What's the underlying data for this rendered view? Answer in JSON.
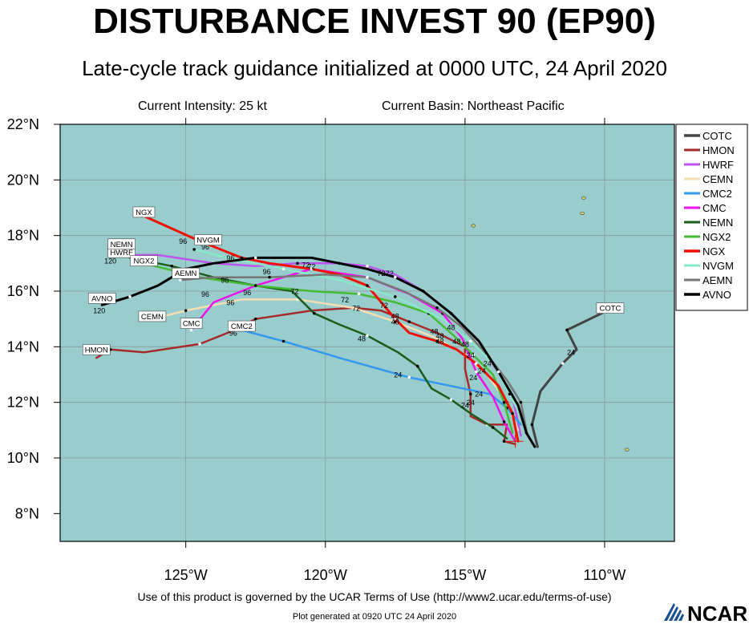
{
  "header": {
    "title": "DISTURBANCE INVEST 90 (EP90)",
    "subtitle": "Late-cycle track guidance initialized at 0000 UTC, 24 April 2020",
    "intensity": "Current Intensity: 25 kt",
    "basin": "Current Basin: Northeast Pacific"
  },
  "footer": {
    "terms": "Use of this product is governed by the UCAR Terms of Use (http://www2.ucar.edu/terms-of-use)",
    "generated": "Plot generated at 0920 UTC   24 April 2020",
    "logo_text": "NCAR"
  },
  "colors": {
    "ocean": "#99cccc",
    "land": "#cccc66"
  },
  "chart_data": {
    "type": "scatter",
    "title": "DISTURBANCE INVEST 90 (EP90)",
    "xlim": [
      -129.5,
      -107.5
    ],
    "ylim": [
      7,
      22
    ],
    "x_ticks": [
      -125,
      -120,
      -115,
      -110
    ],
    "x_tick_labels": [
      "125°W",
      "120°W",
      "115°W",
      "110°W"
    ],
    "y_ticks": [
      8,
      10,
      12,
      14,
      16,
      18,
      20,
      22
    ],
    "y_tick_labels": [
      "8°N",
      "10°N",
      "12°N",
      "14°N",
      "16°N",
      "18°N",
      "20°N",
      "22°N"
    ],
    "legend_position": "right",
    "islands": [
      {
        "lon": -110.8,
        "lat": 18.8
      },
      {
        "lon": -114.7,
        "lat": 18.35
      },
      {
        "lon": -110.75,
        "lat": 19.35
      },
      {
        "lon": -109.2,
        "lat": 10.3
      }
    ],
    "series": [
      {
        "name": "COTC",
        "color": "#444444",
        "width": 3,
        "points": [
          [
            -112.4,
            10.4
          ],
          [
            -112.6,
            11.2
          ],
          [
            -112.3,
            12.4
          ],
          [
            -111.5,
            13.4
          ],
          [
            -111.0,
            13.9
          ],
          [
            -111.35,
            14.6
          ],
          [
            -109.8,
            15.35
          ]
        ],
        "labels": [
          [
            "24",
            -111.2,
            13.7
          ]
        ],
        "tag": {
          "text": "COTC",
          "lon": -109.8,
          "lat": 15.35
        }
      },
      {
        "name": "HMON",
        "color": "#a52a2a",
        "width": 2.5,
        "points": [
          [
            -113.2,
            10.5
          ],
          [
            -113.6,
            10.6
          ],
          [
            -113.5,
            11.2
          ],
          [
            -114.2,
            11.2
          ],
          [
            -114.8,
            11.5
          ],
          [
            -114.8,
            12.3
          ],
          [
            -115.0,
            13.2
          ],
          [
            -115.0,
            14.0
          ],
          [
            -116.0,
            14.5
          ],
          [
            -117.0,
            14.9
          ],
          [
            -118.0,
            15.3
          ],
          [
            -119.0,
            15.4
          ],
          [
            -120.5,
            15.3
          ],
          [
            -122.5,
            15.0
          ],
          [
            -123.5,
            14.5
          ],
          [
            -124.5,
            14.1
          ],
          [
            -126.5,
            13.8
          ],
          [
            -127.7,
            13.9
          ],
          [
            -128.2,
            13.6
          ]
        ],
        "labels": [],
        "tag": {
          "text": "HMON",
          "lon": -128.2,
          "lat": 13.85
        }
      },
      {
        "name": "HWRF",
        "color": "#bb55ee",
        "width": 2.5,
        "points": [
          [
            -113.0,
            10.8
          ],
          [
            -113.3,
            12.2
          ],
          [
            -113.9,
            13.2
          ],
          [
            -114.5,
            14.2
          ],
          [
            -115.5,
            15.2
          ],
          [
            -116.5,
            16.0
          ],
          [
            -117.5,
            16.6
          ],
          [
            -118.5,
            16.9
          ],
          [
            -119.5,
            17.0
          ],
          [
            -121.0,
            17.0
          ],
          [
            -122.5,
            16.9
          ],
          [
            -124.0,
            17.0
          ],
          [
            -126.0,
            17.3
          ],
          [
            -127.3,
            17.3
          ]
        ],
        "labels": [
          [
            "72",
            -118.0,
            16.55
          ]
        ],
        "tag": {
          "text": "HWRF",
          "lon": -127.3,
          "lat": 17.35
        }
      },
      {
        "name": "CEMN",
        "color": "#f5deb3",
        "width": 2.5,
        "points": [
          [
            -113.1,
            11.0
          ],
          [
            -113.5,
            12.0
          ],
          [
            -114.2,
            13.0
          ],
          [
            -115.0,
            13.7
          ],
          [
            -116.0,
            14.3
          ],
          [
            -117.5,
            14.9
          ],
          [
            -119.0,
            15.4
          ],
          [
            -121.0,
            15.7
          ],
          [
            -123.0,
            15.7
          ],
          [
            -125.0,
            15.3
          ],
          [
            -126.2,
            15.0
          ]
        ],
        "labels": [
          [
            "48",
            -115.5,
            14.6
          ],
          [
            "72",
            -121.1,
            15.9
          ],
          [
            "96",
            -123.4,
            15.5
          ]
        ],
        "tag": {
          "text": "CEMN",
          "lon": -126.2,
          "lat": 15.05
        }
      },
      {
        "name": "CMC2",
        "color": "#3399ee",
        "width": 2.5,
        "points": [
          [
            -113.0,
            11.2
          ],
          [
            -113.5,
            11.8
          ],
          [
            -114.1,
            12.3
          ],
          [
            -117.0,
            12.9
          ],
          [
            -119.5,
            13.6
          ],
          [
            -121.5,
            14.2
          ],
          [
            -123.0,
            14.6
          ]
        ],
        "labels": [
          [
            "24",
            -117.4,
            12.9
          ],
          [
            "96",
            -123.3,
            14.4
          ]
        ],
        "tag": {
          "text": "CMC2",
          "lon": -123.0,
          "lat": 14.7
        }
      },
      {
        "name": "CMC",
        "color": "#ee11ee",
        "width": 2.5,
        "points": [
          [
            -113.2,
            10.6
          ],
          [
            -113.6,
            11.3
          ],
          [
            -114.0,
            12.2
          ],
          [
            -114.6,
            13.1
          ],
          [
            -115.1,
            14.3
          ],
          [
            -115.8,
            15.2
          ],
          [
            -117.0,
            15.9
          ],
          [
            -118.5,
            16.5
          ],
          [
            -120.5,
            16.8
          ],
          [
            -122.5,
            16.2
          ],
          [
            -124.0,
            15.6
          ],
          [
            -124.8,
            14.6
          ]
        ],
        "labels": [
          [
            "72",
            -120.7,
            16.85
          ],
          [
            "96",
            -124.3,
            15.8
          ]
        ],
        "tag": {
          "text": "CMC",
          "lon": -124.8,
          "lat": 14.8
        }
      },
      {
        "name": "NEMN",
        "color": "#1a5e1a",
        "width": 2.5,
        "points": [
          [
            -113.5,
            10.7
          ],
          [
            -114.0,
            11.1
          ],
          [
            -114.8,
            11.6
          ],
          [
            -115.5,
            12.1
          ],
          [
            -116.2,
            12.5
          ],
          [
            -116.7,
            13.3
          ],
          [
            -117.4,
            13.8
          ],
          [
            -118.5,
            14.4
          ],
          [
            -119.5,
            14.8
          ],
          [
            -120.4,
            15.2
          ],
          [
            -121.2,
            16.0
          ],
          [
            -122.5,
            16.2
          ],
          [
            -124.0,
            16.5
          ],
          [
            -125.5,
            16.9
          ],
          [
            -127.0,
            17.2
          ],
          [
            -127.3,
            17.55
          ]
        ],
        "labels": [
          [
            "48",
            -118.7,
            14.2
          ],
          [
            "96",
            -123.6,
            16.3
          ]
        ],
        "tag": {
          "text": "NEMN",
          "lon": -127.3,
          "lat": 17.65
        }
      },
      {
        "name": "NGX2",
        "color": "#44bb33",
        "width": 2.5,
        "points": [
          [
            -113.3,
            10.9
          ],
          [
            -113.6,
            12.0
          ],
          [
            -114.0,
            13.0
          ],
          [
            -114.7,
            13.7
          ],
          [
            -115.4,
            14.4
          ],
          [
            -116.3,
            15.2
          ],
          [
            -117.5,
            15.6
          ],
          [
            -118.8,
            15.9
          ],
          [
            -120.5,
            16.0
          ],
          [
            -122.5,
            16.2
          ],
          [
            -124.5,
            16.5
          ],
          [
            -126.5,
            17.0
          ]
        ],
        "labels": [
          [
            "72",
            -119.3,
            15.6
          ],
          [
            "48",
            -116.1,
            14.45
          ]
        ],
        "tag": {
          "text": "NGX2",
          "lon": -126.5,
          "lat": 17.05
        }
      },
      {
        "name": "NGX",
        "color": "#ee1100",
        "width": 3,
        "points": [
          [
            -113.1,
            10.6
          ],
          [
            -113.3,
            11.6
          ],
          [
            -113.8,
            12.6
          ],
          [
            -114.6,
            13.4
          ],
          [
            -115.3,
            13.9
          ],
          [
            -116.0,
            14.2
          ],
          [
            -117.0,
            14.5
          ],
          [
            -117.5,
            15.0
          ],
          [
            -118.0,
            15.6
          ],
          [
            -118.5,
            16.2
          ],
          [
            -119.5,
            16.6
          ],
          [
            -120.5,
            16.8
          ],
          [
            -122.0,
            17.0
          ],
          [
            -123.0,
            17.2
          ],
          [
            -124.5,
            17.8
          ],
          [
            -126.5,
            18.7
          ]
        ],
        "labels": [
          [
            "72",
            -120.5,
            16.8
          ]
        ],
        "tag": {
          "text": "NGX",
          "lon": -126.5,
          "lat": 18.8
        }
      },
      {
        "name": "NVGM",
        "color": "#88e8c8",
        "width": 2.5,
        "points": [
          [
            -112.8,
            11.1
          ],
          [
            -113.4,
            12.3
          ],
          [
            -114.0,
            13.4
          ],
          [
            -114.8,
            14.2
          ],
          [
            -115.8,
            15.0
          ],
          [
            -117.5,
            15.8
          ],
          [
            -119.5,
            16.4
          ],
          [
            -121.5,
            16.8
          ],
          [
            -123.5,
            17.2
          ],
          [
            -124.7,
            17.5
          ]
        ],
        "labels": [
          [
            "96",
            -124.3,
            17.5
          ]
        ],
        "tag": {
          "text": "NVGM",
          "lon": -124.2,
          "lat": 17.8
        }
      },
      {
        "name": "AEMN",
        "color": "#777777",
        "width": 2.5,
        "points": [
          [
            -112.8,
            11.0
          ],
          [
            -113.0,
            12.0
          ],
          [
            -113.5,
            12.8
          ],
          [
            -114.2,
            13.7
          ],
          [
            -115.1,
            14.7
          ],
          [
            -116.0,
            15.4
          ],
          [
            -117.2,
            16.0
          ],
          [
            -118.5,
            16.5
          ],
          [
            -120.0,
            16.6
          ],
          [
            -122.0,
            16.5
          ],
          [
            -124.0,
            16.5
          ],
          [
            -125.2,
            16.4
          ]
        ],
        "labels": [
          [
            "96",
            -124.8,
            16.6
          ]
        ],
        "tag": {
          "text": "AEMN",
          "lon": -125.0,
          "lat": 16.6
        }
      },
      {
        "name": "AVNO",
        "color": "#000000",
        "width": 3,
        "points": [
          [
            -112.5,
            10.4
          ],
          [
            -112.8,
            10.9
          ],
          [
            -113.1,
            11.9
          ],
          [
            -113.8,
            13.1
          ],
          [
            -114.5,
            14.2
          ],
          [
            -115.5,
            15.2
          ],
          [
            -116.5,
            16.0
          ],
          [
            -117.5,
            16.5
          ],
          [
            -118.5,
            16.8
          ],
          [
            -119.5,
            17.0
          ],
          [
            -120.5,
            17.2
          ],
          [
            -122.5,
            17.2
          ],
          [
            -124.0,
            17.0
          ],
          [
            -125.0,
            16.8
          ],
          [
            -126.0,
            16.2
          ],
          [
            -127.0,
            15.8
          ],
          [
            -128.0,
            15.5
          ]
        ],
        "labels": [
          [
            "96",
            -123.4,
            17.1
          ],
          [
            "72",
            -117.7,
            16.55
          ]
        ],
        "tag": {
          "text": "AVNO",
          "lon": -128.0,
          "lat": 15.7
        }
      }
    ],
    "forecast_hour_labels": [
      [
        "120",
        -128.1,
        15.2
      ],
      [
        "120",
        -127.7,
        17.0
      ],
      [
        "120",
        -126.7,
        17.0
      ],
      [
        "96",
        -122.1,
        16.6
      ],
      [
        "96",
        -122.8,
        15.85
      ],
      [
        "96",
        -125.1,
        17.7
      ],
      [
        "72",
        -117.9,
        15.4
      ],
      [
        "72",
        -118.9,
        15.3
      ],
      [
        "48",
        -117.5,
        15.0
      ],
      [
        "48",
        -117.5,
        14.8
      ],
      [
        "48",
        -115.9,
        14.3
      ],
      [
        "48",
        -115.9,
        14.1
      ],
      [
        "48",
        -115.3,
        14.1
      ],
      [
        "48",
        -115.0,
        14.0
      ],
      [
        "24",
        -114.8,
        13.6
      ],
      [
        "24",
        -114.2,
        13.3
      ],
      [
        "24",
        -114.4,
        13.05
      ],
      [
        "24",
        -114.7,
        12.8
      ],
      [
        "24",
        -114.8,
        11.9
      ],
      [
        "24",
        -114.5,
        12.2
      ],
      [
        "24",
        -115.0,
        11.8
      ]
    ]
  }
}
